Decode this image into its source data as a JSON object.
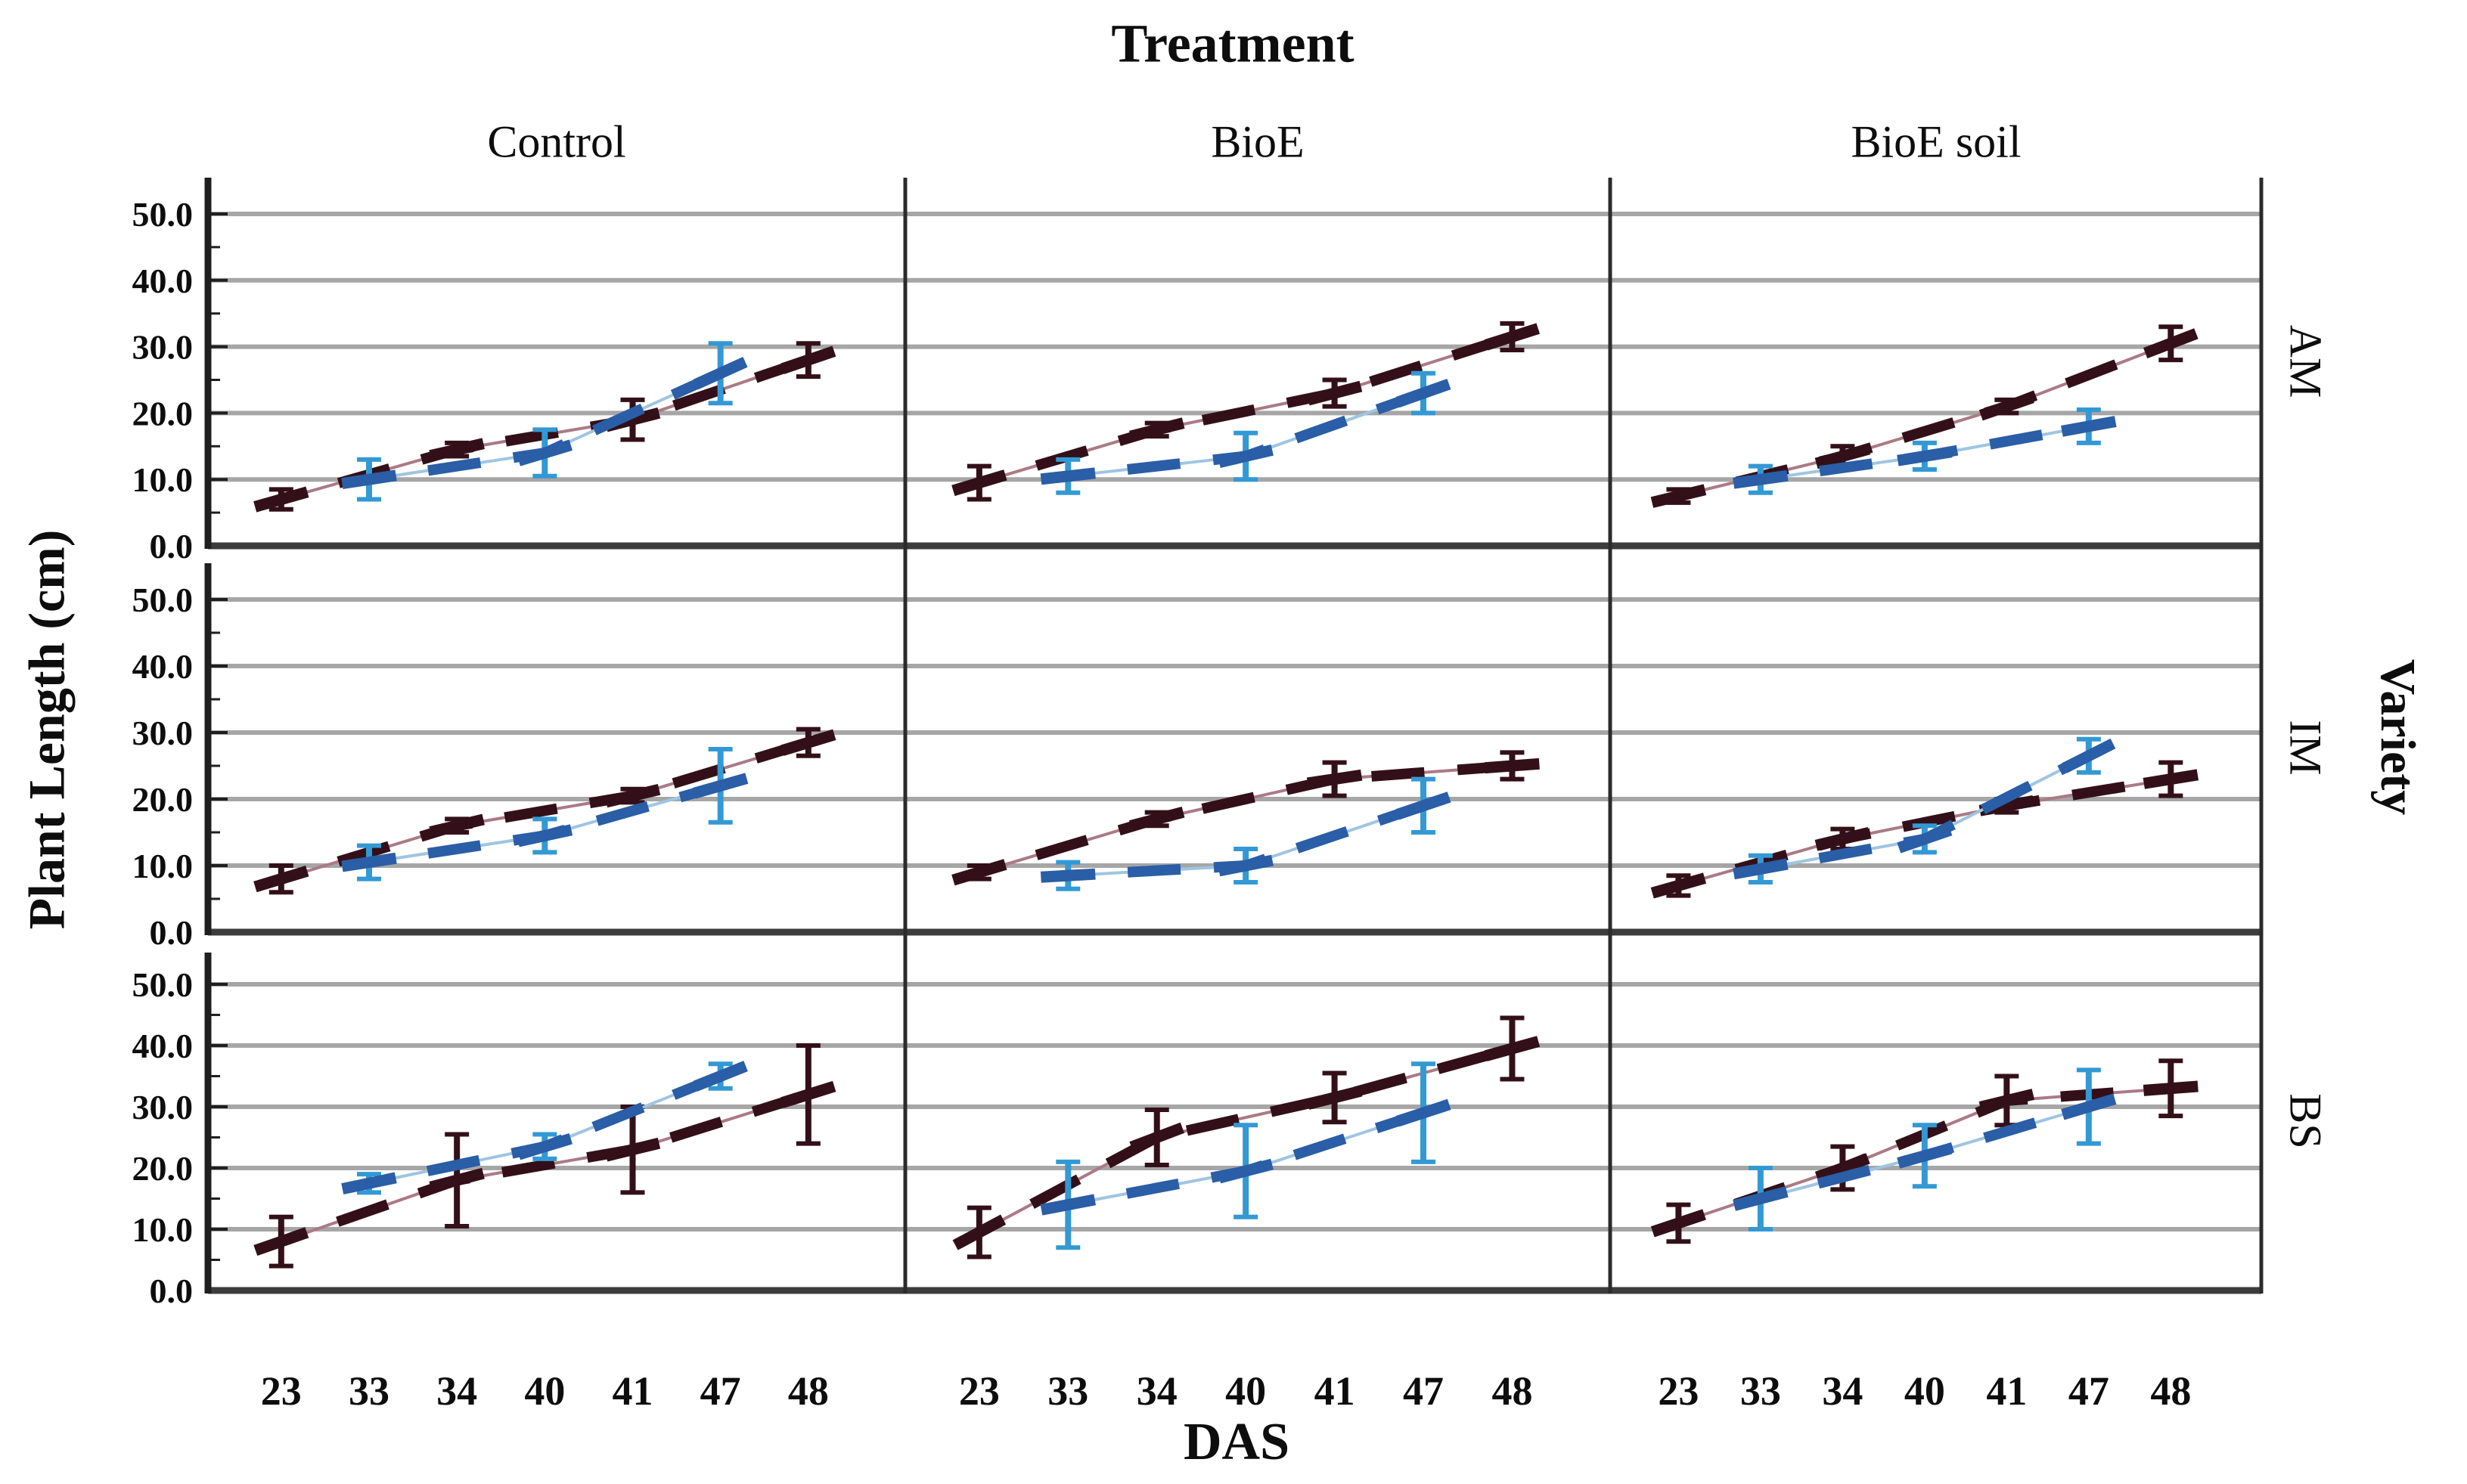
{
  "chart_data": {
    "type": "line",
    "facet_grid": {
      "col_title": "Treatment",
      "row_title": "Variety",
      "cols": [
        "Control",
        "BioE",
        "BioE soil"
      ],
      "rows": [
        "AM",
        "IM",
        "BS"
      ]
    },
    "xlabel": "DAS",
    "ylabel": "Plant Length (cm)",
    "x_categories": [
      "23",
      "33",
      "34",
      "40",
      "41",
      "47",
      "48"
    ],
    "ylim": [
      0,
      55
    ],
    "yticks": [
      "0.0",
      "10.0",
      "20.0",
      "30.0",
      "40.0",
      "50.0"
    ],
    "grid": "horizontal gridlines every 10 cm, error bars on all points",
    "legend_position": "none",
    "series_styles": [
      {
        "name": "maroon-series",
        "x_at": [
          "23",
          "34",
          "41",
          "48"
        ],
        "style": "thick dark maroon dashes over thin rose line"
      },
      {
        "name": "blue-series",
        "x_at": [
          "33",
          "40",
          "47"
        ],
        "style": "thick dark blue dashes over thin light blue line"
      }
    ],
    "panels": [
      {
        "treatment": "Control",
        "variety": "AM",
        "maroon": {
          "x": [
            23,
            34,
            41,
            48
          ],
          "y": [
            7,
            14.5,
            19,
            28
          ],
          "err": [
            1.5,
            1,
            3,
            2.5
          ]
        },
        "blue": {
          "x": [
            33,
            40,
            47
          ],
          "y": [
            10,
            14,
            26
          ],
          "err": [
            3,
            3.5,
            4.5
          ]
        }
      },
      {
        "treatment": "BioE",
        "variety": "AM",
        "maroon": {
          "x": [
            23,
            34,
            41,
            48
          ],
          "y": [
            9.5,
            17.5,
            23,
            31.5
          ],
          "err": [
            2.5,
            1,
            2,
            2
          ]
        },
        "blue": {
          "x": [
            33,
            40,
            47
          ],
          "y": [
            10.5,
            13.5,
            23
          ],
          "err": [
            2.5,
            3.5,
            3
          ]
        }
      },
      {
        "treatment": "BioE soil",
        "variety": "AM",
        "maroon": {
          "x": [
            23,
            34,
            41,
            48
          ],
          "y": [
            7.5,
            13.5,
            21,
            30.5
          ],
          "err": [
            1,
            1.5,
            1,
            2.5
          ]
        },
        "blue": {
          "x": [
            33,
            40,
            47
          ],
          "y": [
            10,
            13.5,
            18
          ],
          "err": [
            2,
            2,
            2.5
          ]
        }
      },
      {
        "treatment": "Control",
        "variety": "IM",
        "maroon": {
          "x": [
            23,
            34,
            41,
            48
          ],
          "y": [
            8,
            16,
            20.5,
            28.5
          ],
          "err": [
            2,
            1,
            1,
            2
          ]
        },
        "blue": {
          "x": [
            33,
            40,
            47
          ],
          "y": [
            10.5,
            14.5,
            22
          ],
          "err": [
            2.5,
            2.5,
            5.5
          ]
        }
      },
      {
        "treatment": "BioE",
        "variety": "IM",
        "maroon": {
          "x": [
            23,
            34,
            41,
            48
          ],
          "y": [
            9,
            17,
            23,
            25
          ],
          "err": [
            1,
            1,
            2.5,
            2
          ]
        },
        "blue": {
          "x": [
            33,
            40,
            47
          ],
          "y": [
            8.5,
            10,
            19
          ],
          "err": [
            2,
            2.5,
            4
          ]
        }
      },
      {
        "treatment": "BioE soil",
        "variety": "IM",
        "maroon": {
          "x": [
            23,
            34,
            41,
            48
          ],
          "y": [
            7,
            14,
            19,
            23
          ],
          "err": [
            1.5,
            1.5,
            1,
            2.5
          ]
        },
        "blue": {
          "x": [
            33,
            40,
            47
          ],
          "y": [
            9.5,
            14,
            26.5
          ],
          "err": [
            2,
            2,
            2.5
          ]
        }
      },
      {
        "treatment": "Control",
        "variety": "BS",
        "maroon": {
          "x": [
            23,
            34,
            41,
            48
          ],
          "y": [
            8,
            18,
            23,
            32
          ],
          "err": [
            4,
            7.5,
            7,
            8
          ]
        },
        "blue": {
          "x": [
            33,
            40,
            47
          ],
          "y": [
            17.5,
            23.5,
            35
          ],
          "err": [
            1.5,
            2,
            2
          ]
        }
      },
      {
        "treatment": "BioE",
        "variety": "BS",
        "maroon": {
          "x": [
            23,
            34,
            41,
            48
          ],
          "y": [
            9.5,
            25,
            31.5,
            39.5
          ],
          "err": [
            4,
            4.5,
            4,
            5
          ]
        },
        "blue": {
          "x": [
            33,
            40,
            47
          ],
          "y": [
            14,
            19.5,
            29
          ],
          "err": [
            7,
            7.5,
            8
          ]
        }
      },
      {
        "treatment": "BioE soil",
        "variety": "BS",
        "maroon": {
          "x": [
            23,
            34,
            41,
            48
          ],
          "y": [
            11,
            20,
            31,
            33
          ],
          "err": [
            3,
            3.5,
            4,
            4.5
          ]
        },
        "blue": {
          "x": [
            33,
            40,
            47
          ],
          "y": [
            15,
            22,
            30
          ],
          "err": [
            5,
            5,
            6
          ]
        }
      }
    ],
    "colors": {
      "maroon_dash": "#331019",
      "maroon_line": "#ab7a85",
      "blue_dash": "#2a5ea6",
      "blue_line": "#9fc5e2",
      "blue_err": "#3399d4",
      "grid": "#a6a6a6",
      "axis": "#3c3c3c",
      "spine": "#1f1f1f",
      "separator": "#2b2b2b",
      "text": "#0d0d0d"
    }
  }
}
